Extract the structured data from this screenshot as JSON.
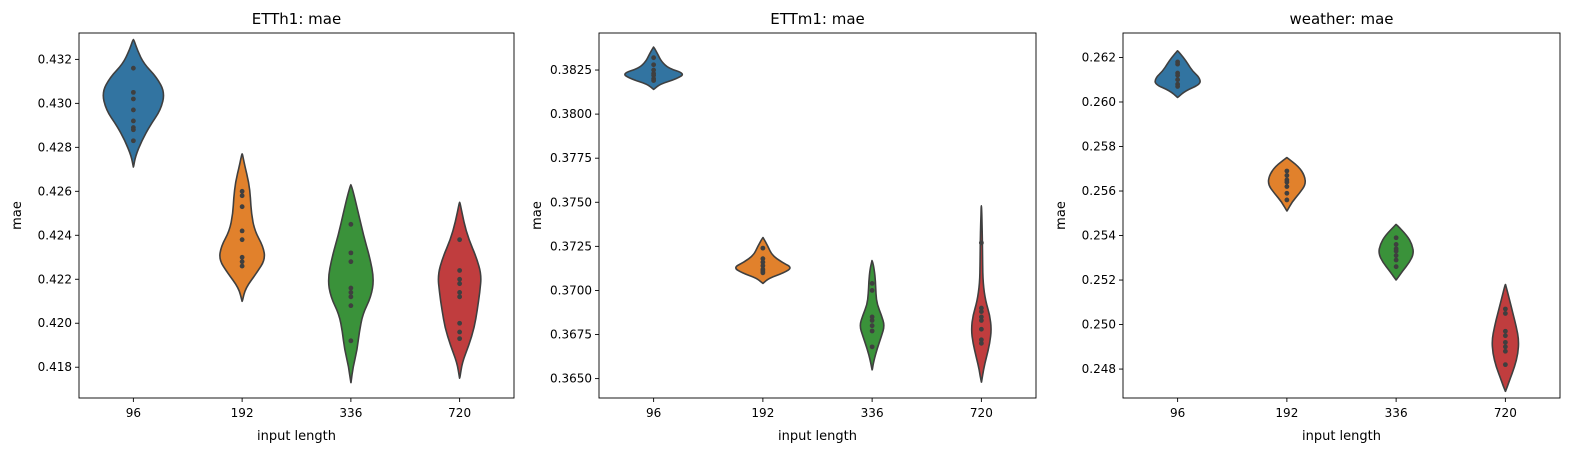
{
  "chart_data": [
    {
      "type": "violin",
      "title": "ETTh1: mae",
      "xlabel": "input length",
      "ylabel": "mae",
      "categories": [
        "96",
        "192",
        "336",
        "720"
      ],
      "ylim": [
        0.4166,
        0.4332
      ],
      "yticks": [
        0.418,
        0.42,
        0.422,
        0.424,
        0.426,
        0.428,
        0.43,
        0.432
      ],
      "yticklabels": [
        "0.418",
        "0.420",
        "0.422",
        "0.424",
        "0.426",
        "0.428",
        "0.430",
        "0.432"
      ],
      "violins": [
        {
          "category": "96",
          "min": 0.4271,
          "max": 0.4329,
          "profile": [
            [
              0.4271,
              0.002
            ],
            [
              0.4276,
              0.05
            ],
            [
              0.4283,
              0.2
            ],
            [
              0.429,
              0.4
            ],
            [
              0.4297,
              0.65
            ],
            [
              0.4305,
              0.75
            ],
            [
              0.4312,
              0.55
            ],
            [
              0.4318,
              0.25
            ],
            [
              0.4324,
              0.1
            ],
            [
              0.4329,
              0.01
            ]
          ],
          "points": [
            0.4316,
            0.4305,
            0.4302,
            0.4297,
            0.4292,
            0.4289,
            0.4288,
            0.4283
          ]
        },
        {
          "category": "192",
          "min": 0.421,
          "max": 0.4277,
          "profile": [
            [
              0.421,
              0.004
            ],
            [
              0.4216,
              0.08
            ],
            [
              0.4223,
              0.35
            ],
            [
              0.4229,
              0.55
            ],
            [
              0.4235,
              0.5
            ],
            [
              0.4242,
              0.3
            ],
            [
              0.425,
              0.22
            ],
            [
              0.4257,
              0.2
            ],
            [
              0.4264,
              0.16
            ],
            [
              0.4272,
              0.06
            ],
            [
              0.4277,
              0.006
            ]
          ],
          "points": [
            0.426,
            0.4258,
            0.4253,
            0.4242,
            0.4238,
            0.423,
            0.4228,
            0.4226
          ]
        },
        {
          "category": "336",
          "min": 0.4173,
          "max": 0.4263,
          "profile": [
            [
              0.4173,
              0.004
            ],
            [
              0.418,
              0.05
            ],
            [
              0.4188,
              0.15
            ],
            [
              0.4196,
              0.2
            ],
            [
              0.4204,
              0.28
            ],
            [
              0.4212,
              0.48
            ],
            [
              0.422,
              0.55
            ],
            [
              0.423,
              0.45
            ],
            [
              0.424,
              0.3
            ],
            [
              0.425,
              0.18
            ],
            [
              0.4258,
              0.08
            ],
            [
              0.4263,
              0.006
            ]
          ],
          "points": [
            0.4245,
            0.4232,
            0.4228,
            0.4216,
            0.4214,
            0.4212,
            0.4208,
            0.4192
          ]
        },
        {
          "category": "720",
          "min": 0.4175,
          "max": 0.4255,
          "profile": [
            [
              0.4175,
              0.004
            ],
            [
              0.4182,
              0.06
            ],
            [
              0.419,
              0.22
            ],
            [
              0.4198,
              0.35
            ],
            [
              0.4206,
              0.42
            ],
            [
              0.4214,
              0.48
            ],
            [
              0.4222,
              0.52
            ],
            [
              0.423,
              0.4
            ],
            [
              0.4238,
              0.22
            ],
            [
              0.4246,
              0.1
            ],
            [
              0.4255,
              0.006
            ]
          ],
          "points": [
            0.4238,
            0.4224,
            0.422,
            0.4218,
            0.4214,
            0.4212,
            0.42,
            0.4196,
            0.4193
          ]
        }
      ]
    },
    {
      "type": "violin",
      "title": "ETTm1: mae",
      "xlabel": "input length",
      "ylabel": "mae",
      "categories": [
        "96",
        "192",
        "336",
        "720"
      ],
      "ylim": [
        0.3639,
        0.3846
      ],
      "yticks": [
        0.365,
        0.3675,
        0.37,
        0.3725,
        0.375,
        0.3775,
        0.38,
        0.3825
      ],
      "yticklabels": [
        "0.3650",
        "0.3675",
        "0.3700",
        "0.3725",
        "0.3750",
        "0.3775",
        "0.3800",
        "0.3825"
      ],
      "violins": [
        {
          "category": "96",
          "min": 0.3814,
          "max": 0.3838,
          "profile": [
            [
              0.3814,
              0.004
            ],
            [
              0.3817,
              0.15
            ],
            [
              0.382,
              0.55
            ],
            [
              0.3823,
              0.75
            ],
            [
              0.3826,
              0.35
            ],
            [
              0.383,
              0.18
            ],
            [
              0.3834,
              0.1
            ],
            [
              0.3838,
              0.004
            ]
          ],
          "points": [
            0.3832,
            0.3828,
            0.3825,
            0.3823,
            0.3822,
            0.382,
            0.3819
          ]
        },
        {
          "category": "192",
          "min": 0.3704,
          "max": 0.373,
          "profile": [
            [
              0.3704,
              0.004
            ],
            [
              0.3707,
              0.15
            ],
            [
              0.371,
              0.5
            ],
            [
              0.3713,
              0.7
            ],
            [
              0.3716,
              0.45
            ],
            [
              0.372,
              0.22
            ],
            [
              0.3725,
              0.12
            ],
            [
              0.373,
              0.004
            ]
          ],
          "points": [
            0.3724,
            0.3718,
            0.3716,
            0.3714,
            0.3712,
            0.3711,
            0.371
          ]
        },
        {
          "category": "336",
          "min": 0.3655,
          "max": 0.3717,
          "profile": [
            [
              0.3655,
              0.004
            ],
            [
              0.366,
              0.04
            ],
            [
              0.3667,
              0.12
            ],
            [
              0.3674,
              0.22
            ],
            [
              0.368,
              0.3
            ],
            [
              0.3686,
              0.22
            ],
            [
              0.3692,
              0.12
            ],
            [
              0.3698,
              0.09
            ],
            [
              0.3705,
              0.08
            ],
            [
              0.3712,
              0.05
            ],
            [
              0.3717,
              0.004
            ]
          ],
          "points": [
            0.3704,
            0.37,
            0.3685,
            0.3683,
            0.368,
            0.3677,
            0.3668
          ]
        },
        {
          "category": "720",
          "min": 0.3648,
          "max": 0.3748,
          "profile": [
            [
              0.3648,
              0.004
            ],
            [
              0.3655,
              0.05
            ],
            [
              0.3662,
              0.12
            ],
            [
              0.367,
              0.2
            ],
            [
              0.3678,
              0.24
            ],
            [
              0.3686,
              0.2
            ],
            [
              0.3694,
              0.1
            ],
            [
              0.3704,
              0.04
            ],
            [
              0.3716,
              0.03
            ],
            [
              0.3728,
              0.025
            ],
            [
              0.3738,
              0.015
            ],
            [
              0.3748,
              0.003
            ]
          ],
          "points": [
            0.3727,
            0.369,
            0.3688,
            0.3685,
            0.3683,
            0.3678,
            0.3672,
            0.367
          ]
        }
      ]
    },
    {
      "type": "violin",
      "title": "weather: mae",
      "xlabel": "input length",
      "ylabel": "mae",
      "categories": [
        "96",
        "192",
        "336",
        "720"
      ],
      "ylim": [
        0.2467,
        0.2631
      ],
      "yticks": [
        0.248,
        0.25,
        0.252,
        0.254,
        0.256,
        0.258,
        0.26,
        0.262
      ],
      "yticklabels": [
        "0.248",
        "0.250",
        "0.252",
        "0.254",
        "0.256",
        "0.258",
        "0.260",
        "0.262"
      ],
      "violins": [
        {
          "category": "96",
          "min": 0.2602,
          "max": 0.2623,
          "profile": [
            [
              0.2602,
              0.004
            ],
            [
              0.2605,
              0.18
            ],
            [
              0.2608,
              0.55
            ],
            [
              0.2611,
              0.52
            ],
            [
              0.2614,
              0.35
            ],
            [
              0.2617,
              0.25
            ],
            [
              0.262,
              0.14
            ],
            [
              0.2623,
              0.004
            ]
          ],
          "points": [
            0.2618,
            0.2617,
            0.2613,
            0.2612,
            0.261,
            0.2608,
            0.2607
          ]
        },
        {
          "category": "192",
          "min": 0.2551,
          "max": 0.2575,
          "profile": [
            [
              0.2551,
              0.004
            ],
            [
              0.2555,
              0.12
            ],
            [
              0.2559,
              0.3
            ],
            [
              0.2563,
              0.45
            ],
            [
              0.2567,
              0.42
            ],
            [
              0.2571,
              0.28
            ],
            [
              0.2575,
              0.004
            ]
          ],
          "points": [
            0.2569,
            0.2567,
            0.2565,
            0.2564,
            0.2562,
            0.2559,
            0.2556
          ]
        },
        {
          "category": "336",
          "min": 0.252,
          "max": 0.2545,
          "profile": [
            [
              0.252,
              0.004
            ],
            [
              0.2524,
              0.15
            ],
            [
              0.2528,
              0.32
            ],
            [
              0.2532,
              0.42
            ],
            [
              0.2536,
              0.38
            ],
            [
              0.254,
              0.26
            ],
            [
              0.2545,
              0.004
            ]
          ],
          "points": [
            0.2539,
            0.2536,
            0.2534,
            0.2533,
            0.2531,
            0.2529,
            0.2526
          ]
        },
        {
          "category": "720",
          "min": 0.247,
          "max": 0.2518,
          "profile": [
            [
              0.247,
              0.004
            ],
            [
              0.2475,
              0.1
            ],
            [
              0.2481,
              0.22
            ],
            [
              0.2487,
              0.3
            ],
            [
              0.2493,
              0.32
            ],
            [
              0.2499,
              0.26
            ],
            [
              0.2505,
              0.18
            ],
            [
              0.2511,
              0.1
            ],
            [
              0.2518,
              0.004
            ]
          ],
          "points": [
            0.2507,
            0.2505,
            0.2497,
            0.2495,
            0.2492,
            0.249,
            0.2488,
            0.2482
          ]
        }
      ]
    }
  ],
  "colors": {
    "palette": [
      "#1f77b4",
      "#ff7f0e",
      "#2ca02c",
      "#d62728"
    ],
    "fill_palette": [
      "#3274a1",
      "#e1812c",
      "#3a923a",
      "#c03d3e"
    ],
    "outline": "#3f3f3f",
    "point": "#3f3f3f"
  }
}
